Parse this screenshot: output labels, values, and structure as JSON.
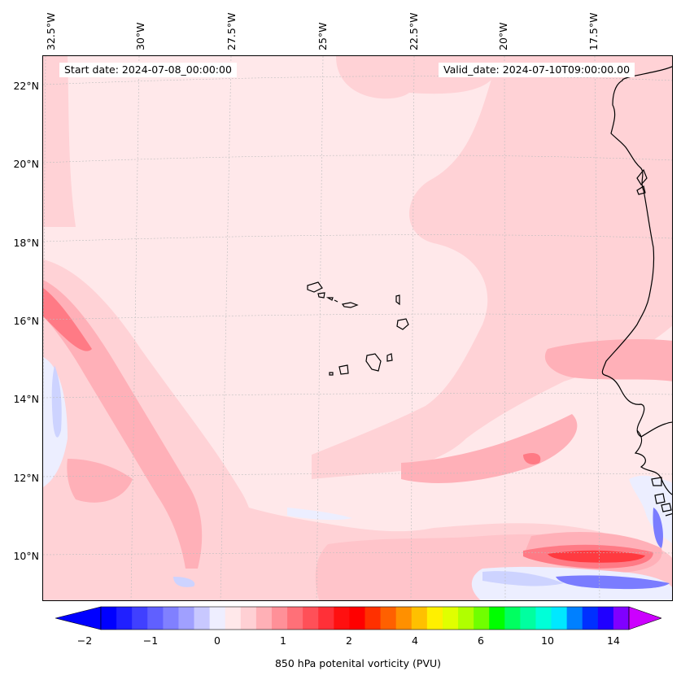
{
  "map": {
    "region": "Eastern Atlantic / Cape Verde / West Africa coast",
    "longitude_labels": [
      "32.5°W",
      "30°W",
      "27.5°W",
      "25°W",
      "22.5°W",
      "20°W",
      "17.5°W"
    ],
    "latitude_labels": [
      "22°N",
      "20°N",
      "18°N",
      "16°N",
      "14°N",
      "12°N",
      "10°N"
    ],
    "start_date": "Start date: 2024-07-08_00:00:00",
    "valid_date": "Valid_date: 2024-07-10T09:00:00.00",
    "colors": {
      "background_field": "#ffe8ea",
      "light_positive": "#ffd2d6",
      "medium_positive": "#ffb0b8",
      "strong_positive": "#ff7a85",
      "peak_positive": "#ff3a40",
      "light_negative": "#eceeff",
      "medium_negative": "#cdd3ff",
      "strong_negative": "#7a7cff",
      "coastline": "#000000",
      "gridline": "#bdbdbd"
    }
  },
  "colorbar": {
    "label": "850 hPa potenital vorticity (PVU)",
    "tick_labels": [
      "−2",
      "−1",
      "0",
      "1",
      "2",
      "4",
      "6",
      "10",
      "14"
    ],
    "colors": [
      "#0000ff",
      "#2020ff",
      "#4040ff",
      "#6060ff",
      "#8080ff",
      "#a0a0ff",
      "#c8c8ff",
      "#eeeeff",
      "#ffe8ea",
      "#ffd0d4",
      "#ffb0b6",
      "#ff9098",
      "#ff7078",
      "#ff5058",
      "#ff3038",
      "#ff1010",
      "#ff0000",
      "#ff3000",
      "#ff6000",
      "#ff9000",
      "#ffc000",
      "#fff000",
      "#e0ff00",
      "#b0ff00",
      "#70ff00",
      "#00ff00",
      "#00ff60",
      "#00ffa0",
      "#00ffd8",
      "#00e8ff",
      "#0080ff",
      "#0030ff",
      "#2000ff",
      "#8000ff"
    ],
    "under_color": "#0000ff",
    "over_color": "#cc00ff"
  }
}
